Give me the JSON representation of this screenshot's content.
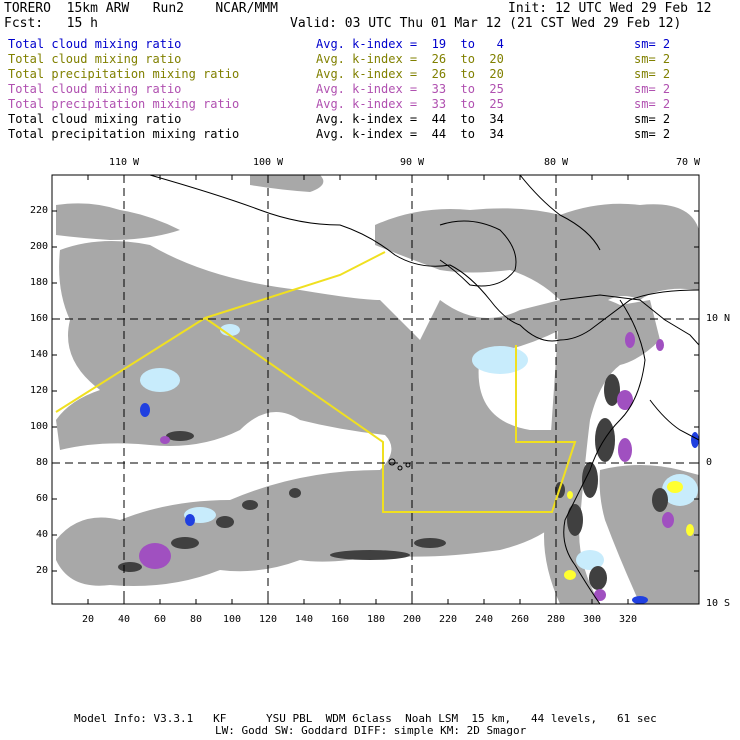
{
  "header": {
    "model": "TORERO  15km ARW   Run2    NCAR/MMM",
    "init": "Init: 12 UTC Wed 29 Feb 12",
    "fcst": "Fcst:   15 h",
    "valid": "Valid: 03 UTC Thu 01 Mar 12 (21 CST Wed 29 Feb 12)"
  },
  "legend": [
    {
      "field": "Total cloud mixing ratio",
      "index": "Avg. k-index =  19  to   4",
      "sm": "sm= 2",
      "color": "#0000cc"
    },
    {
      "field": "Total cloud mixing ratio",
      "index": "Avg. k-index =  26  to  20",
      "sm": "sm= 2",
      "color": "#808000"
    },
    {
      "field": "Total precipitation mixing ratio",
      "index": "Avg. k-index =  26  to  20",
      "sm": "sm= 2",
      "color": "#808000"
    },
    {
      "field": "Total cloud mixing ratio",
      "index": "Avg. k-index =  33  to  25",
      "sm": "sm= 2",
      "color": "#b050b0"
    },
    {
      "field": "Total precipitation mixing ratio",
      "index": "Avg. k-index =  33  to  25",
      "sm": "sm= 2",
      "color": "#b050b0"
    },
    {
      "field": "Total cloud mixing ratio",
      "index": "Avg. k-index =  44  to  34",
      "sm": "sm= 2",
      "color": "#000000"
    },
    {
      "field": "Total precipitation mixing ratio",
      "index": "Avg. k-index =  44  to  34",
      "sm": "sm= 2",
      "color": "#000000"
    }
  ],
  "map": {
    "lon_labels": [
      "110 W",
      "100 W",
      "90 W",
      "80 W",
      "70 W"
    ],
    "lat_labels": [
      "10 N",
      "0",
      "10 S"
    ],
    "y_ticks": [
      "20",
      "40",
      "60",
      "80",
      "100",
      "120",
      "140",
      "160",
      "180",
      "200",
      "220"
    ],
    "x_ticks": [
      "20",
      "40",
      "60",
      "80",
      "100",
      "120",
      "140",
      "160",
      "180",
      "200",
      "220",
      "240",
      "260",
      "280",
      "300",
      "320"
    ],
    "colors": {
      "cloud_gray": "#a8a8a8",
      "dark_gray": "#505050",
      "black": "#202020",
      "light_blue": "#c8ecfc",
      "blue": "#2040e0",
      "purple": "#a050c0",
      "yellow": "#ffff30",
      "boundary_yellow": "#f0e020"
    }
  },
  "footer": {
    "line1": "Model Info: V3.3.1   KF      YSU PBL  WDM 6class  Noah LSM  15 km,   44 levels,   61 sec",
    "line2": "LW: Godd SW: Goddard DIFF: simple KM: 2D Smagor"
  }
}
